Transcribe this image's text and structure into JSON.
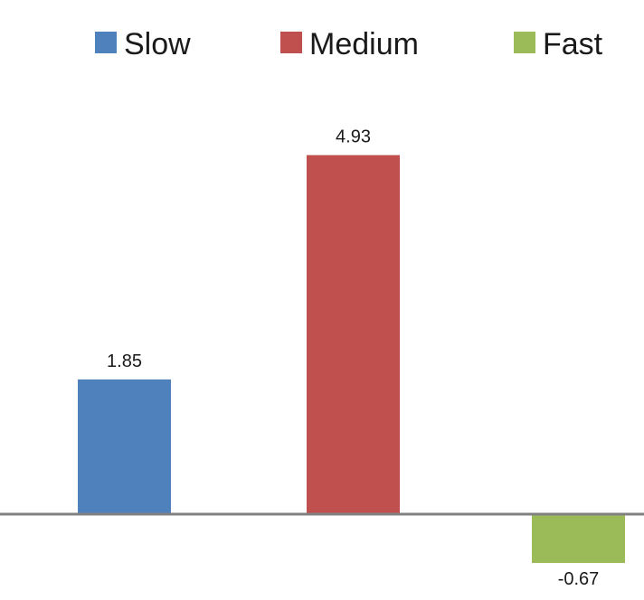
{
  "chart_data": {
    "type": "bar",
    "series": [
      {
        "name": "Slow",
        "value": 1.85,
        "label": "1.85",
        "color": "#4f81bd"
      },
      {
        "name": "Medium",
        "value": 4.93,
        "label": "4.93",
        "color": "#c0504d"
      },
      {
        "name": "Fast",
        "value": -0.67,
        "label": "-0.67",
        "color": "#9bbb59"
      }
    ],
    "title": "",
    "xlabel": "",
    "ylabel": "",
    "legend_position": "top",
    "axis_line_color": "#808080",
    "grid": false
  }
}
